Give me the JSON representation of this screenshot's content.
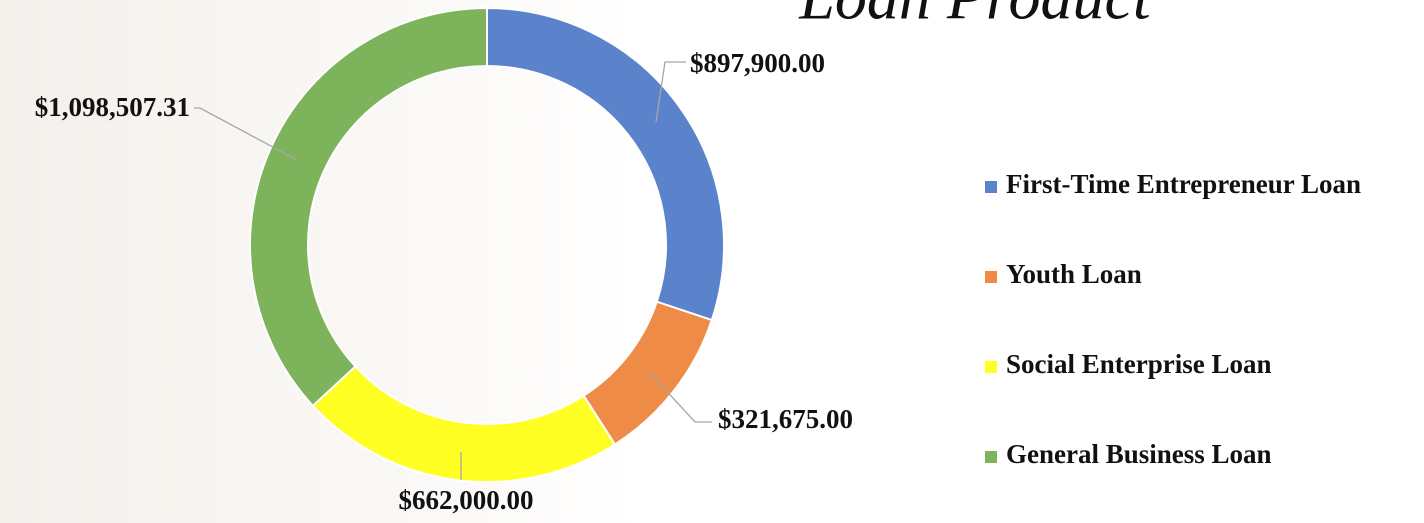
{
  "chart_data": {
    "type": "donut",
    "title": "Loan Product",
    "categories": [
      "First-Time Entrepreneur Loan",
      "Youth Loan",
      "Social Enterprise Loan",
      "General Business Loan"
    ],
    "values": [
      897900,
      321675,
      662000,
      1098507.31
    ],
    "value_labels": [
      "$897,900.00",
      "$321,675.00",
      "$662,000.00",
      "$1,098,507.31"
    ],
    "colors": [
      "#5b83cc",
      "#ee8b47",
      "#ffff24",
      "#7db35a"
    ],
    "legend": "right"
  }
}
